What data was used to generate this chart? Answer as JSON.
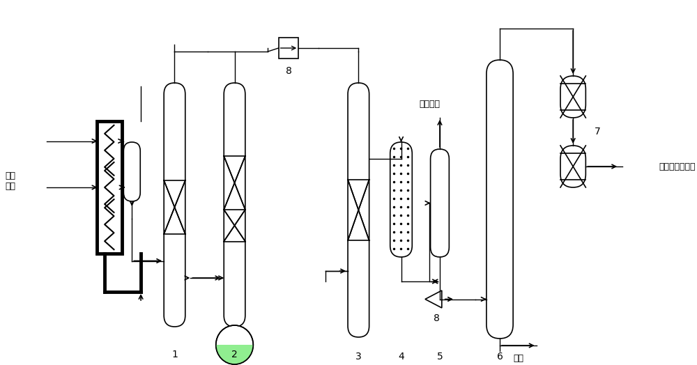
{
  "bg_color": "#ffffff",
  "line_color": "#000000",
  "fig_width": 10.0,
  "fig_height": 5.24,
  "labels": {
    "xi_re_zheng_qi": "稀释\n蝉汽",
    "jia_wan_qing": "甲烷、氢",
    "tan_san": "碳三",
    "qu_hou_xu": "去后续分离系统",
    "num1": "1",
    "num2": "2",
    "num3": "3",
    "num4": "4",
    "num5": "5",
    "num6": "6",
    "num7": "7",
    "num8a": "8",
    "num8b": "8"
  }
}
